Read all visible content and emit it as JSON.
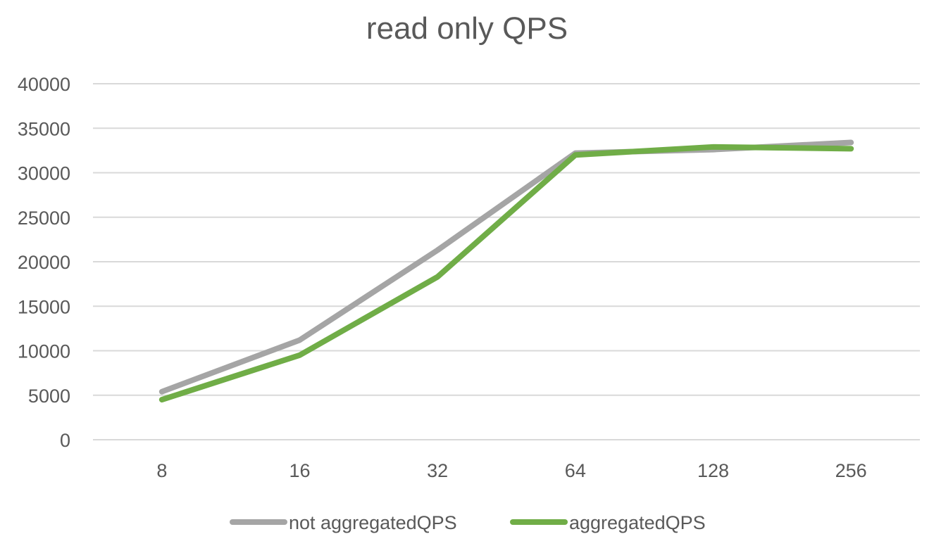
{
  "chart_data": {
    "type": "line",
    "title": "read only QPS",
    "xlabel": "",
    "ylabel": "",
    "categories": [
      "8",
      "16",
      "32",
      "64",
      "128",
      "256"
    ],
    "ylim": [
      0,
      40000
    ],
    "yticks": [
      0,
      5000,
      10000,
      15000,
      20000,
      25000,
      30000,
      35000,
      40000
    ],
    "grid": true,
    "legend_position": "bottom",
    "series": [
      {
        "name": "not aggregatedQPS",
        "color": "#A5A5A5",
        "values": [
          5400,
          11200,
          21300,
          32200,
          32600,
          33400
        ]
      },
      {
        "name": "aggregatedQPS",
        "color": "#70AD47",
        "values": [
          4500,
          9500,
          18300,
          32000,
          32900,
          32700
        ]
      }
    ]
  }
}
